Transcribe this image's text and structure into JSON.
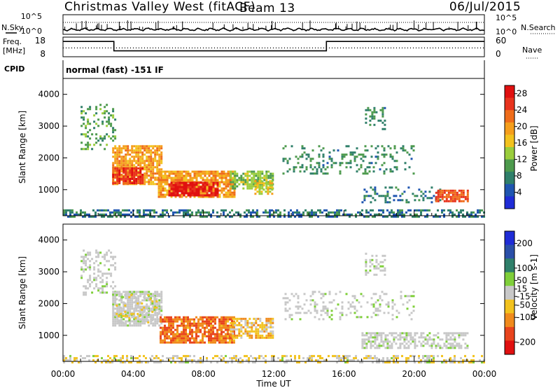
{
  "header": {
    "station": "Christmas Valley West (fitACF)",
    "beam": "Beam 13",
    "date": "06/Jul/2015"
  },
  "left_labels": {
    "nsky": "N.Sky",
    "freq_line1": "Freq.",
    "freq_line2": "[MHz]",
    "cpid": "CPID"
  },
  "right_labels": {
    "nsearch": "N.Search",
    "nave": "Nave"
  },
  "cpid_text": "normal (fast) -151 IF",
  "colors": {
    "power": [
      "#1f2cd6",
      "#1f55b0",
      "#2f7f6a",
      "#4d9a4d",
      "#9acd3c",
      "#f2c21e",
      "#f59e1c",
      "#ef6c1a",
      "#e8331d",
      "#e01010"
    ],
    "velocity": [
      "#1f2cd6",
      "#2a4fa8",
      "#2f7f6a",
      "#7fcf3a",
      "#c8c8c8",
      "#f2c21e",
      "#f08a1c",
      "#e8441d",
      "#e01010"
    ],
    "ground_scatter": "#c8c8c8"
  },
  "chart_data": [
    {
      "type": "line",
      "name": "noise-panel",
      "left_axis": {
        "label": "N.Sky",
        "ticks": [
          "10^5",
          "10^0"
        ]
      },
      "right_axis": {
        "label": "N.Search",
        "ticks": [
          "10^5",
          "10^0"
        ]
      }
    },
    {
      "type": "line",
      "name": "frequency-panel",
      "left_axis": {
        "label": "Freq. [MHz]",
        "ticks": [
          18,
          8
        ],
        "ylim": [
          8,
          18
        ]
      },
      "right_axis": {
        "label": "Nave",
        "ticks": [
          60,
          0
        ],
        "ylim": [
          0,
          60
        ]
      },
      "series": [
        {
          "name": "Freq.",
          "x": [
            0,
            2.9,
            2.9,
            15,
            15,
            24
          ],
          "y": [
            15.8,
            15.8,
            11,
            11,
            15.8,
            15.8
          ]
        },
        {
          "name": "Nave",
          "x": [
            0,
            24
          ],
          "y": [
            27,
            27
          ]
        }
      ]
    },
    {
      "type": "heatmap",
      "name": "power-panel",
      "ylabel": "Slant Range [km]",
      "xlim": [
        0,
        24
      ],
      "ylim": [
        180,
        4500
      ],
      "yticks": [
        1000,
        2000,
        3000,
        4000
      ],
      "colorbar": {
        "label": "Power [dB]",
        "ticks": [
          4,
          8,
          12,
          16,
          20,
          24,
          28
        ],
        "range": [
          0,
          30
        ]
      },
      "regions": [
        {
          "t0": 2.8,
          "t1": 5.6,
          "r0": 1200,
          "r1": 2400,
          "level": 20,
          "dens": 0.8
        },
        {
          "t0": 2.8,
          "t1": 4.5,
          "r0": 1200,
          "r1": 1700,
          "level": 27,
          "dens": 0.85
        },
        {
          "t0": 5.4,
          "t1": 9.8,
          "r0": 800,
          "r1": 1600,
          "level": 20,
          "dens": 0.8
        },
        {
          "t0": 6.0,
          "t1": 8.8,
          "r0": 800,
          "r1": 1250,
          "level": 29,
          "dens": 0.85
        },
        {
          "t0": 9.5,
          "t1": 11.9,
          "r0": 1050,
          "r1": 1600,
          "level": 12,
          "dens": 0.7
        },
        {
          "t0": 10.9,
          "t1": 11.9,
          "r0": 850,
          "r1": 1300,
          "level": 16,
          "dens": 0.6
        },
        {
          "t0": 1.0,
          "t1": 3.0,
          "r0": 2300,
          "r1": 3700,
          "level": 10,
          "dens": 0.25
        },
        {
          "t0": 12.5,
          "t1": 20.0,
          "r0": 1500,
          "r1": 2400,
          "level": 8,
          "dens": 0.2
        },
        {
          "t0": 17.0,
          "t1": 21.5,
          "r0": 600,
          "r1": 1100,
          "level": 6,
          "dens": 0.25
        },
        {
          "t0": 21.2,
          "t1": 23.0,
          "r0": 650,
          "r1": 1000,
          "level": 25,
          "dens": 0.8
        },
        {
          "t0": 17.2,
          "t1": 18.3,
          "r0": 2900,
          "r1": 3600,
          "level": 8,
          "dens": 0.3
        },
        {
          "t0": 0.0,
          "t1": 24.0,
          "r0": 180,
          "r1": 380,
          "level": 6,
          "dens": 0.5
        }
      ]
    },
    {
      "type": "heatmap",
      "name": "velocity-panel",
      "ylabel": "Slant Range [km]",
      "xlabel": "Time UT",
      "xlim": [
        0,
        24
      ],
      "xticks": [
        "00:00",
        "04:00",
        "08:00",
        "12:00",
        "16:00",
        "20:00",
        "00:00"
      ],
      "ylim": [
        180,
        4500
      ],
      "yticks": [
        1000,
        2000,
        3000,
        4000
      ],
      "colorbar": {
        "label": "Velocity [m s-1]",
        "ticks": [
          200,
          100,
          50,
          15,
          -15,
          -50,
          -100,
          -200
        ],
        "range": [
          -250,
          250
        ]
      },
      "regions": [
        {
          "t0": 2.8,
          "t1": 5.6,
          "r0": 1300,
          "r1": 2400,
          "v": 0,
          "gs": true,
          "dens": 0.75
        },
        {
          "t0": 5.5,
          "t1": 9.8,
          "r0": 800,
          "r1": 1600,
          "v": -150,
          "gs": false,
          "dens": 0.8
        },
        {
          "t0": 9.5,
          "t1": 11.9,
          "r0": 950,
          "r1": 1550,
          "v": -60,
          "gs": false,
          "dens": 0.7
        },
        {
          "t0": 3.0,
          "t1": 5.5,
          "r0": 1400,
          "r1": 2300,
          "v": -20,
          "gs": false,
          "dens": 0.25
        },
        {
          "t0": 12.5,
          "t1": 20.0,
          "r0": 1500,
          "r1": 2400,
          "v": 0,
          "gs": true,
          "dens": 0.2
        },
        {
          "t0": 17.0,
          "t1": 23.0,
          "r0": 600,
          "r1": 1100,
          "v": 0,
          "gs": true,
          "dens": 0.55
        },
        {
          "t0": 1.0,
          "t1": 3.0,
          "r0": 2300,
          "r1": 3700,
          "v": 0,
          "gs": true,
          "dens": 0.3
        },
        {
          "t0": 17.2,
          "t1": 18.3,
          "r0": 2900,
          "r1": 3600,
          "v": 0,
          "gs": true,
          "dens": 0.3
        },
        {
          "t0": 0.0,
          "t1": 24.0,
          "r0": 180,
          "r1": 380,
          "v": -20,
          "gs": false,
          "dens": 0.45
        }
      ]
    }
  ]
}
